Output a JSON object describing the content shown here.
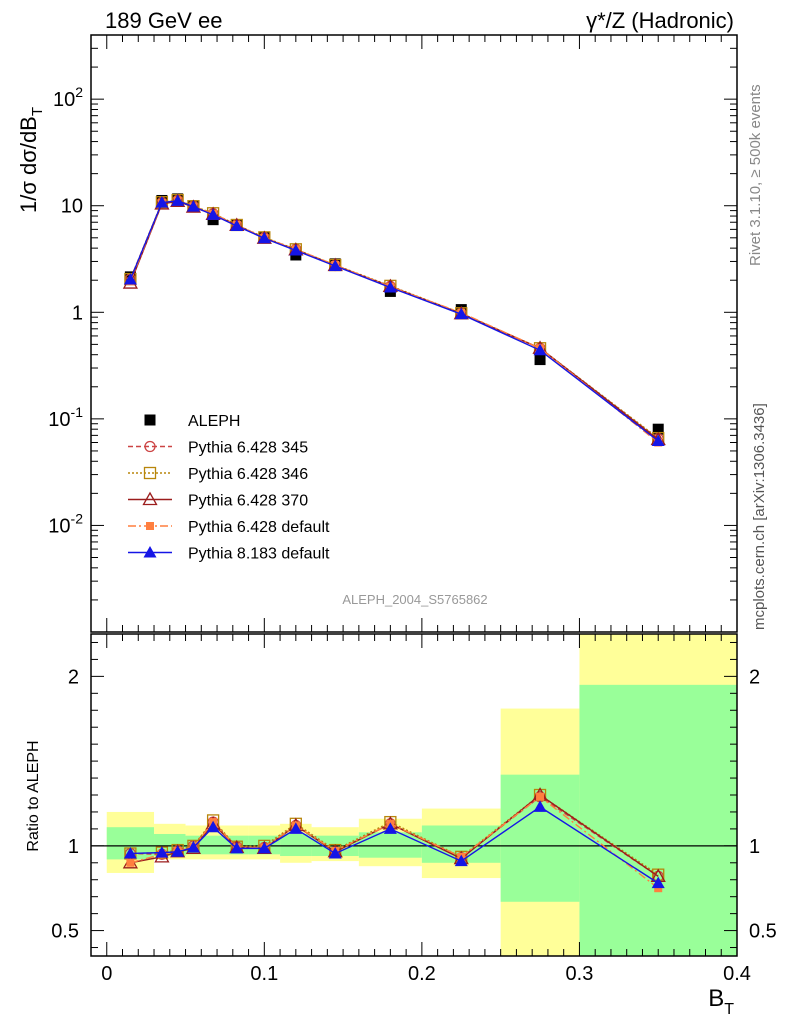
{
  "header": {
    "left": "189 GeV ee",
    "right": "γ*/Z (Hadronic)"
  },
  "side": {
    "rivet": "Rivet 3.1.10, ≥ 500k events",
    "mcplots": "mcplots.cern.ch [arXiv:1306.3436]"
  },
  "watermark": "ALEPH_2004_S5765862",
  "colors": {
    "data": "#000000",
    "p345": "#cc4444",
    "p346": "#b8860b",
    "p370": "#9b1c1c",
    "p6def": "#ff7f3f",
    "p8def": "#1515e6",
    "band_yellow": "#ffff99",
    "band_green": "#99ff99"
  },
  "chart_data": [
    {
      "type": "scatter",
      "panel": "main",
      "ylabel": "1/σ  dσ/dB_T",
      "y_scale": "log",
      "ylim": [
        0.001,
        400
      ],
      "xlim": [
        -0.01,
        0.4
      ],
      "yticks": [
        {
          "v": 0.01,
          "label": "10^-2"
        },
        {
          "v": 0.1,
          "label": "10^-1"
        },
        {
          "v": 1,
          "label": "1"
        },
        {
          "v": 10,
          "label": "10"
        },
        {
          "v": 100,
          "label": "10^2"
        }
      ],
      "x": [
        0.015,
        0.035,
        0.045,
        0.055,
        0.0675,
        0.0825,
        0.1,
        0.12,
        0.145,
        0.18,
        0.225,
        0.275,
        0.35
      ],
      "legend_position": "bottom-left",
      "series": [
        {
          "name": "ALEPH",
          "style": "data",
          "values": [
            2.15,
            11.2,
            11.6,
            9.9,
            7.4,
            6.55,
            5.05,
            3.45,
            2.85,
            1.57,
            1.06,
            0.36,
            0.08
          ]
        },
        {
          "name": "Pythia 6.428 345",
          "style": "p345",
          "values": [
            2.05,
            10.7,
            11.2,
            9.9,
            8.4,
            6.6,
            5.0,
            3.9,
            2.75,
            1.75,
            0.97,
            0.46,
            0.065
          ]
        },
        {
          "name": "Pythia 6.428 346",
          "style": "p346",
          "values": [
            2.05,
            10.8,
            11.3,
            9.9,
            8.5,
            6.6,
            5.05,
            3.9,
            2.78,
            1.77,
            0.98,
            0.46,
            0.066
          ]
        },
        {
          "name": "Pythia 6.428 370",
          "style": "p370",
          "values": [
            1.88,
            10.4,
            11.0,
            9.7,
            8.3,
            6.55,
            4.95,
            3.85,
            2.75,
            1.75,
            0.97,
            0.46,
            0.064
          ]
        },
        {
          "name": "Pythia 6.428 default",
          "style": "p6def",
          "values": [
            1.95,
            10.6,
            11.2,
            9.85,
            8.4,
            6.6,
            5.0,
            3.9,
            2.78,
            1.74,
            0.99,
            0.46,
            0.06
          ]
        },
        {
          "name": "Pythia 8.183 default",
          "style": "p8def",
          "values": [
            2.03,
            10.7,
            11.1,
            9.8,
            8.2,
            6.45,
            4.95,
            3.8,
            2.72,
            1.71,
            0.96,
            0.44,
            0.062
          ]
        }
      ]
    },
    {
      "type": "line",
      "panel": "ratio",
      "ylabel": "Ratio to ALEPH",
      "xlabel": "B_T",
      "ylim": [
        0.35,
        2.25
      ],
      "xlim": [
        -0.01,
        0.4
      ],
      "xticks": [
        0,
        0.1,
        0.2,
        0.3,
        0.4
      ],
      "xtick_labels": [
        "0",
        "0.1",
        "0.2",
        "0.3",
        "0.4"
      ],
      "yticks": [
        {
          "v": 0.5,
          "label": "0.5"
        },
        {
          "v": 1,
          "label": "1"
        },
        {
          "v": 2,
          "label": "2"
        }
      ],
      "bins": [
        {
          "lo": 0.0,
          "hi": 0.03,
          "green": [
            0.92,
            1.11
          ],
          "yellow": [
            0.84,
            1.2
          ]
        },
        {
          "lo": 0.03,
          "hi": 0.05,
          "green": [
            0.94,
            1.07
          ],
          "yellow": [
            0.92,
            1.13
          ]
        },
        {
          "lo": 0.05,
          "hi": 0.09,
          "green": [
            0.95,
            1.06
          ],
          "yellow": [
            0.92,
            1.12
          ]
        },
        {
          "lo": 0.09,
          "hi": 0.11,
          "green": [
            0.95,
            1.06
          ],
          "yellow": [
            0.92,
            1.12
          ]
        },
        {
          "lo": 0.11,
          "hi": 0.13,
          "green": [
            0.94,
            1.07
          ],
          "yellow": [
            0.9,
            1.13
          ]
        },
        {
          "lo": 0.13,
          "hi": 0.16,
          "green": [
            0.94,
            1.06
          ],
          "yellow": [
            0.91,
            1.11
          ]
        },
        {
          "lo": 0.16,
          "hi": 0.2,
          "green": [
            0.93,
            1.08
          ],
          "yellow": [
            0.88,
            1.16
          ]
        },
        {
          "lo": 0.2,
          "hi": 0.25,
          "green": [
            0.9,
            1.12
          ],
          "yellow": [
            0.81,
            1.22
          ]
        },
        {
          "lo": 0.25,
          "hi": 0.3,
          "green": [
            0.67,
            1.42
          ],
          "yellow": [
            0.2,
            1.81
          ]
        },
        {
          "lo": 0.3,
          "hi": 0.4,
          "green": [
            0.2,
            1.95
          ],
          "yellow": [
            0.2,
            2.5
          ]
        }
      ],
      "x": [
        0.015,
        0.035,
        0.045,
        0.055,
        0.0675,
        0.0825,
        0.1,
        0.12,
        0.145,
        0.18,
        0.225,
        0.275,
        0.35
      ],
      "series": [
        {
          "name": "Pythia 6.428 345",
          "style": "p345",
          "values": [
            0.955,
            0.95,
            0.97,
            1.0,
            1.14,
            0.995,
            0.99,
            1.12,
            0.965,
            1.13,
            0.93,
            1.29,
            0.82
          ]
        },
        {
          "name": "Pythia 6.428 346",
          "style": "p346",
          "values": [
            0.955,
            0.96,
            0.975,
            1.0,
            1.15,
            0.995,
            1.0,
            1.13,
            0.975,
            1.14,
            0.935,
            1.3,
            0.83
          ]
        },
        {
          "name": "Pythia 6.428 370",
          "style": "p370",
          "values": [
            0.9,
            0.935,
            0.965,
            0.985,
            1.13,
            0.99,
            0.985,
            1.12,
            0.965,
            1.13,
            0.925,
            1.3,
            0.82
          ]
        },
        {
          "name": "Pythia 6.428 default",
          "style": "p6def",
          "values": [
            0.9,
            0.95,
            0.97,
            0.995,
            1.14,
            0.99,
            0.99,
            1.12,
            0.97,
            1.13,
            0.935,
            1.29,
            0.75
          ]
        },
        {
          "name": "Pythia 8.183 default",
          "style": "p8def",
          "values": [
            0.955,
            0.96,
            0.965,
            0.99,
            1.11,
            0.985,
            0.985,
            1.1,
            0.955,
            1.1,
            0.91,
            1.23,
            0.78
          ]
        }
      ]
    }
  ]
}
